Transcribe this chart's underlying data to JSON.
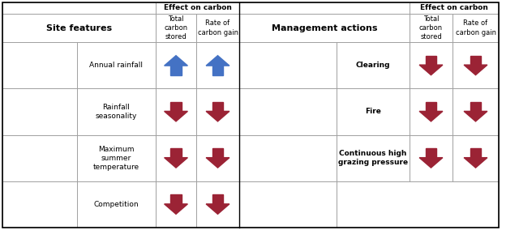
{
  "bg_color": "#ffffff",
  "border_color": "#000000",
  "grid_color": "#999999",
  "site_features": [
    "Annual rainfall",
    "Rainfall\nseasonality",
    "Maximum\nsummer\ntemperature",
    "Competition"
  ],
  "site_arrows": [
    [
      "up_blue",
      "up_blue"
    ],
    [
      "down_red",
      "down_red"
    ],
    [
      "down_red",
      "down_red"
    ],
    [
      "down_red",
      "down_red"
    ]
  ],
  "management_actions": [
    "Clearing",
    "Fire",
    "Continuous high\ngrazing pressure",
    ""
  ],
  "management_arrows": [
    [
      "down_red",
      "down_red"
    ],
    [
      "down_red",
      "down_red"
    ],
    [
      "down_red",
      "down_red"
    ],
    [
      "",
      ""
    ]
  ],
  "col_header_left": "Effect on carbon",
  "col_header_right": "Effect on carbon",
  "col_sub1": "Total\ncarbon\nstored",
  "col_sub2": "Rate of\ncarbon gain",
  "left_label": "Site features",
  "right_label": "Management actions",
  "blue_arrow_color": "#4472c4",
  "red_arrow_color": "#9b2335",
  "n_rows": 4
}
